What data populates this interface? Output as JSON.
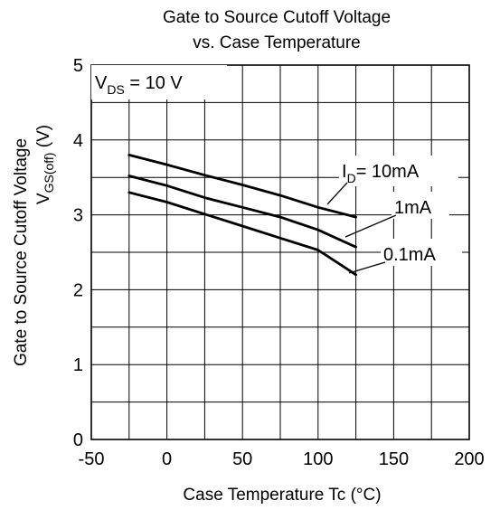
{
  "chart_data": {
    "type": "line",
    "title": [
      "Gate to Source Cutoff Voltage",
      "vs. Case Temperature"
    ],
    "xlabel": "Case Temperature    Tc  (°C)",
    "ylabel": {
      "line1": "Gate to Source Cutoff Voltage",
      "main": "V",
      "sub": "GS(off)",
      "unit": " (V)"
    },
    "xlim": [
      -50,
      200
    ],
    "ylim": [
      0,
      5
    ],
    "x_ticks": [
      -50,
      0,
      50,
      100,
      150,
      200
    ],
    "y_ticks": [
      0,
      1,
      2,
      3,
      4,
      5
    ],
    "x_tick_labels": [
      "-50",
      "0",
      "50",
      "100",
      "150",
      "200"
    ],
    "y_tick_labels": [
      "0",
      "1",
      "2",
      "3",
      "4",
      "5"
    ],
    "grid": true,
    "condition": {
      "main": "V",
      "sub": "DS",
      "rest": " = 10 V"
    },
    "series": [
      {
        "name": "10mA",
        "label_main": "I",
        "label_sub": "D",
        "label_rest": "= 10mA",
        "x": [
          -25,
          0,
          25,
          50,
          75,
          100,
          125
        ],
        "y": [
          3.8,
          3.67,
          3.53,
          3.4,
          3.26,
          3.1,
          2.97
        ]
      },
      {
        "name": "1mA",
        "label_main": "",
        "label_sub": "",
        "label_rest": "1mA",
        "x": [
          -25,
          0,
          25,
          50,
          75,
          100,
          125
        ],
        "y": [
          3.52,
          3.39,
          3.23,
          3.1,
          2.97,
          2.8,
          2.57
        ]
      },
      {
        "name": "0.1mA",
        "label_main": "",
        "label_sub": "",
        "label_rest": "0.1mA",
        "x": [
          -25,
          0,
          25,
          50,
          75,
          100,
          125
        ],
        "y": [
          3.3,
          3.17,
          3.01,
          2.85,
          2.69,
          2.53,
          2.2
        ]
      }
    ]
  }
}
